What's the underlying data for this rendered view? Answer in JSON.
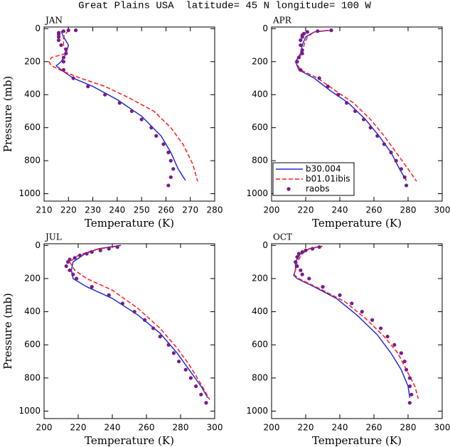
{
  "title": "Great Plains USA  latitude= 45 N longitude= 100 W",
  "legend": {
    "panel": 1,
    "corner": "lower-left",
    "entries": [
      {
        "name": "b30.004"
      },
      {
        "name": "b01.01ibis"
      },
      {
        "name": "raobs"
      }
    ]
  },
  "chart_data": [
    {
      "type": "line",
      "title": "JAN",
      "xlabel": "Temperature (K)",
      "ylabel": "Pressure (mb)",
      "xlim": [
        210,
        280
      ],
      "xticks": [
        210,
        220,
        230,
        240,
        250,
        260,
        270,
        280
      ],
      "ylim": [
        -10,
        1045
      ],
      "yticks": [
        0,
        200,
        400,
        600,
        800,
        1000
      ],
      "y_reversed": true,
      "series": [
        {
          "color": "#1f2de0",
          "style": "solid",
          "x": [
            217,
            218,
            220,
            219,
            217,
            215,
            218,
            222,
            230,
            240,
            250,
            258,
            262,
            265,
            268
          ],
          "y": [
            15,
            50,
            100,
            150,
            200,
            225,
            260,
            300,
            350,
            430,
            530,
            650,
            750,
            850,
            920
          ]
        },
        {
          "color": "#ff1a1a",
          "style": "dashed",
          "x": [
            220,
            218,
            218,
            219,
            213,
            212,
            213,
            218,
            225,
            235,
            245,
            255,
            262,
            267,
            271,
            273
          ],
          "y": [
            10,
            50,
            100,
            150,
            175,
            200,
            225,
            260,
            300,
            350,
            420,
            500,
            600,
            700,
            820,
            925
          ]
        },
        {
          "color": "#7a1a8a",
          "style": "dots",
          "x": [
            223,
            220,
            218,
            216,
            216,
            216,
            216,
            217,
            219,
            219,
            218,
            218,
            218,
            222,
            228,
            235,
            241,
            246,
            250,
            254,
            256,
            259,
            261,
            262,
            263,
            262,
            261
          ],
          "y": [
            10,
            10,
            15,
            25,
            35,
            50,
            70,
            100,
            125,
            150,
            175,
            200,
            250,
            300,
            350,
            400,
            450,
            500,
            550,
            600,
            650,
            700,
            750,
            800,
            850,
            900,
            950
          ]
        }
      ]
    },
    {
      "type": "line",
      "title": "APR",
      "xlabel": "Temperature (K)",
      "xlim": [
        200,
        300
      ],
      "xticks": [
        200,
        220,
        240,
        260,
        280,
        300
      ],
      "ylim": [
        -10,
        1045
      ],
      "yticks": [
        0,
        200,
        400,
        600,
        800,
        1000
      ],
      "y_reversed": true,
      "series": [
        {
          "color": "#1f2de0",
          "style": "solid",
          "x": [
            233,
            225,
            220,
            218,
            217,
            214,
            216,
            225,
            235,
            245,
            255,
            263,
            270,
            275,
            279
          ],
          "y": [
            10,
            20,
            50,
            100,
            150,
            200,
            250,
            300,
            380,
            450,
            550,
            650,
            750,
            850,
            920
          ]
        },
        {
          "color": "#ff1a1a",
          "style": "dashed",
          "x": [
            235,
            225,
            221,
            219,
            218,
            214,
            217,
            227,
            238,
            248,
            258,
            266,
            273,
            280,
            285
          ],
          "y": [
            10,
            20,
            50,
            100,
            150,
            200,
            250,
            300,
            380,
            450,
            550,
            650,
            750,
            850,
            925
          ]
        },
        {
          "color": "#7a1a8a",
          "style": "dots",
          "x": [
            235,
            227,
            221,
            219,
            218,
            218,
            217,
            217,
            218,
            218,
            216,
            215,
            217,
            228,
            233,
            239,
            244,
            249,
            254,
            258,
            262,
            266,
            270,
            273,
            276,
            278,
            279
          ],
          "y": [
            10,
            15,
            20,
            30,
            40,
            50,
            70,
            100,
            130,
            150,
            175,
            200,
            250,
            300,
            350,
            400,
            450,
            500,
            550,
            600,
            650,
            700,
            750,
            800,
            850,
            900,
            950
          ]
        }
      ]
    },
    {
      "type": "line",
      "title": "JUL",
      "xlabel": "Temperature (K)",
      "ylabel": "Pressure (mb)",
      "xlim": [
        200,
        300
      ],
      "xticks": [
        200,
        220,
        240,
        260,
        280,
        300
      ],
      "ylim": [
        -10,
        1045
      ],
      "yticks": [
        0,
        200,
        400,
        600,
        800,
        1000
      ],
      "y_reversed": true,
      "series": [
        {
          "color": "#1f2de0",
          "style": "solid",
          "x": [
            245,
            232,
            224,
            217,
            216,
            217,
            225,
            240,
            255,
            268,
            278,
            285,
            292,
            296
          ],
          "y": [
            0,
            20,
            50,
            100,
            150,
            200,
            250,
            320,
            420,
            530,
            650,
            750,
            850,
            920
          ]
        },
        {
          "color": "#ff1a1a",
          "style": "dashed",
          "x": [
            243,
            230,
            220,
            215,
            218,
            225,
            240,
            255,
            268,
            278,
            285,
            291,
            297
          ],
          "y": [
            5,
            25,
            60,
            100,
            150,
            200,
            270,
            380,
            500,
            620,
            720,
            820,
            930
          ]
        },
        {
          "color": "#7a1a8a",
          "style": "dots",
          "x": [
            243,
            238,
            233,
            228,
            225,
            221,
            218,
            215,
            214,
            213,
            215,
            217,
            219,
            228,
            238,
            246,
            253,
            259,
            264,
            268,
            273,
            276,
            279,
            283,
            286,
            289,
            292,
            295
          ],
          "y": [
            10,
            20,
            30,
            40,
            50,
            60,
            75,
            85,
            100,
            125,
            150,
            175,
            200,
            250,
            300,
            350,
            400,
            450,
            500,
            550,
            600,
            650,
            700,
            750,
            800,
            850,
            900,
            950
          ]
        }
      ]
    },
    {
      "type": "line",
      "title": "OCT",
      "xlabel": "Temperature (K)",
      "xlim": [
        200,
        300
      ],
      "xticks": [
        200,
        220,
        240,
        260,
        280,
        300
      ],
      "ylim": [
        -10,
        1045
      ],
      "yticks": [
        0,
        200,
        400,
        600,
        800,
        1000
      ],
      "y_reversed": true,
      "series": [
        {
          "color": "#1f2de0",
          "style": "solid",
          "x": [
            229,
            222,
            217,
            214,
            214,
            213,
            215,
            225,
            238,
            250,
            262,
            270,
            276,
            280,
            281
          ],
          "y": [
            5,
            20,
            50,
            100,
            150,
            180,
            200,
            250,
            320,
            420,
            540,
            650,
            750,
            850,
            920
          ]
        },
        {
          "color": "#ff1a1a",
          "style": "dashed",
          "x": [
            230,
            222,
            218,
            215,
            214,
            213,
            216,
            228,
            243,
            255,
            266,
            274,
            279,
            284,
            286
          ],
          "y": [
            5,
            20,
            50,
            100,
            150,
            175,
            200,
            260,
            340,
            440,
            550,
            650,
            750,
            850,
            925
          ]
        },
        {
          "color": "#7a1a8a",
          "style": "dots",
          "x": [
            228,
            224,
            220,
            218,
            216,
            215,
            214,
            215,
            217,
            218,
            222,
            230,
            240,
            247,
            253,
            259,
            264,
            268,
            272,
            276,
            278,
            279,
            281,
            281,
            282,
            281
          ],
          "y": [
            10,
            20,
            30,
            40,
            50,
            70,
            100,
            125,
            150,
            175,
            200,
            250,
            300,
            350,
            400,
            450,
            500,
            550,
            600,
            650,
            700,
            750,
            800,
            850,
            900,
            950
          ]
        }
      ]
    }
  ]
}
